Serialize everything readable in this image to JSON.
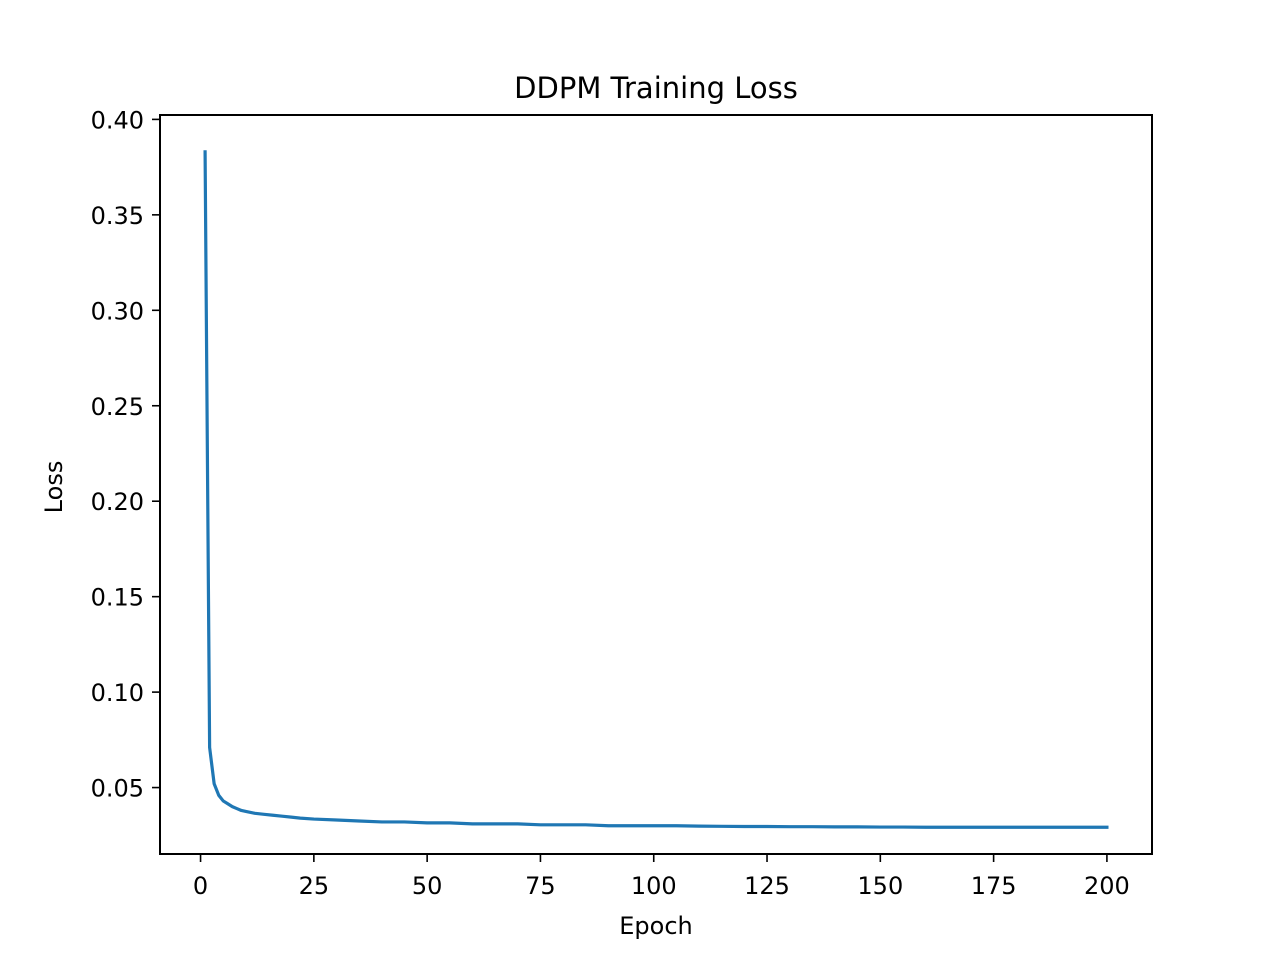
{
  "chart_data": {
    "type": "line",
    "title": "DDPM Training Loss",
    "xlabel": "Epoch",
    "ylabel": "Loss",
    "xlim": [
      -8.95,
      209.95
    ],
    "ylim": [
      0.0152,
      0.4023
    ],
    "xticks": [
      0,
      25,
      50,
      75,
      100,
      125,
      150,
      175,
      200
    ],
    "xtick_labels": [
      "0",
      "25",
      "50",
      "75",
      "100",
      "125",
      "150",
      "175",
      "200"
    ],
    "yticks": [
      0.05,
      0.1,
      0.15,
      0.2,
      0.25,
      0.3,
      0.35,
      0.4
    ],
    "ytick_labels": [
      "0.05",
      "0.10",
      "0.15",
      "0.20",
      "0.25",
      "0.30",
      "0.35",
      "0.40"
    ],
    "grid": false,
    "legend": "none",
    "series": [
      {
        "color": "#1f77b4",
        "x": [
          1,
          2,
          3,
          4,
          5,
          6,
          7,
          8,
          9,
          10,
          12,
          14,
          16,
          18,
          20,
          22,
          25,
          30,
          35,
          40,
          45,
          50,
          55,
          60,
          65,
          70,
          75,
          80,
          85,
          90,
          95,
          100,
          105,
          110,
          115,
          120,
          125,
          130,
          135,
          140,
          145,
          150,
          155,
          160,
          165,
          170,
          175,
          180,
          185,
          190,
          195,
          200
        ],
        "y": [
          0.383,
          0.071,
          0.052,
          0.046,
          0.043,
          0.0415,
          0.04,
          0.039,
          0.038,
          0.0375,
          0.0365,
          0.036,
          0.0355,
          0.035,
          0.0345,
          0.034,
          0.0335,
          0.033,
          0.0325,
          0.032,
          0.032,
          0.0315,
          0.0315,
          0.031,
          0.031,
          0.031,
          0.0305,
          0.0305,
          0.0305,
          0.03,
          0.03,
          0.03,
          0.03,
          0.0298,
          0.0297,
          0.0296,
          0.0296,
          0.0295,
          0.0295,
          0.0294,
          0.0294,
          0.0293,
          0.0293,
          0.0292,
          0.0292,
          0.0292,
          0.0292,
          0.0292,
          0.0292,
          0.0292,
          0.0292,
          0.0292
        ]
      }
    ]
  }
}
